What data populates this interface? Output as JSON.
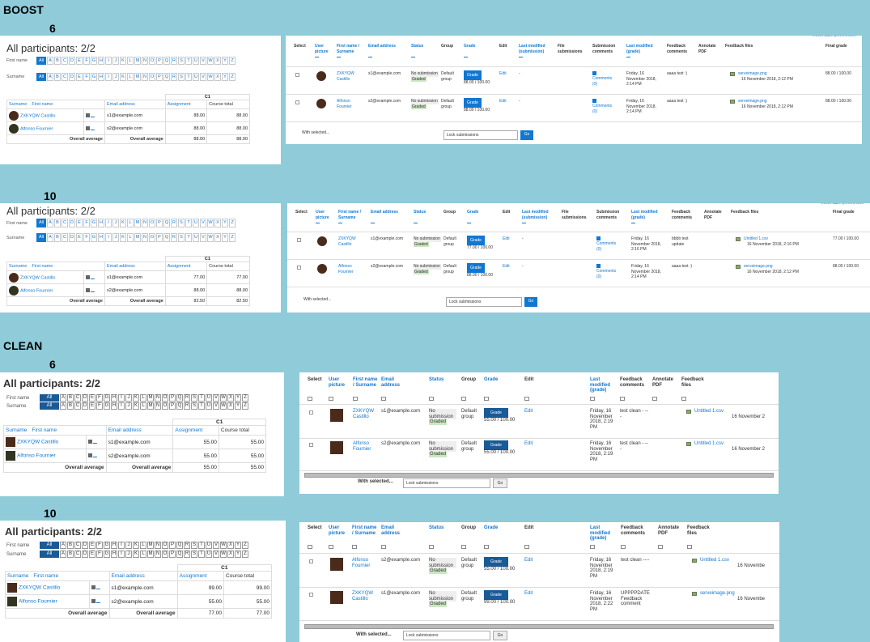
{
  "sections": {
    "boost": "BOOST",
    "clean": "CLEAN"
  },
  "versions": {
    "v6": "6",
    "v10": "10"
  },
  "gradebook": {
    "title": "All participants: 2/2",
    "firstname_label": "First name",
    "surname_label": "Surname",
    "all": "All",
    "letters": [
      "A",
      "B",
      "C",
      "D",
      "E",
      "F",
      "G",
      "H",
      "I",
      "J",
      "K",
      "L",
      "M",
      "N",
      "O",
      "P",
      "Q",
      "R",
      "S",
      "T",
      "U",
      "V",
      "W",
      "X",
      "Y",
      "Z"
    ],
    "c1": "C1",
    "col_surname": "Surname",
    "col_firstname": "First name",
    "col_email": "Email address",
    "col_assignment": "Assignment",
    "col_total": "Course total",
    "overall": "Overall average",
    "b6": {
      "rows": [
        {
          "name": "ZXKYQW Castillo",
          "email": "s1@example.com",
          "a": "88.00",
          "t": "88.00"
        },
        {
          "name": "Alfonso Fournier",
          "email": "s2@example.com",
          "a": "88.00",
          "t": "88.00"
        }
      ],
      "avg_a": "88.00",
      "avg_t": "88.00"
    },
    "b10": {
      "rows": [
        {
          "name": "ZXKYQW Castillo",
          "email": "s1@example.com",
          "a": "77.00",
          "t": "77.00"
        },
        {
          "name": "Alfonso Fournier",
          "email": "s2@example.com",
          "a": "88.00",
          "t": "88.00"
        }
      ],
      "avg_a": "82.50",
      "avg_t": "82.50"
    },
    "c6": {
      "rows": [
        {
          "name": "ZXKYQW Castillo",
          "email": "s1@example.com",
          "a": "55.00",
          "t": "55.00"
        },
        {
          "name": "Alfonso Fournier",
          "email": "s2@example.com",
          "a": "55.00",
          "t": "55.00"
        }
      ],
      "avg_a": "55.00",
      "avg_t": "55.00"
    },
    "c10": {
      "rows": [
        {
          "name": "ZXKYQW Castillo",
          "email": "s1@example.com",
          "a": "99.00",
          "t": "99.00"
        },
        {
          "name": "Alfonso Fournier",
          "email": "s2@example.com",
          "a": "55.00",
          "t": "55.00"
        }
      ],
      "avg_a": "77.00",
      "avg_t": "77.00"
    }
  },
  "assign": {
    "headers": {
      "select": "Select",
      "picture": "User picture",
      "name": "First name / Surname",
      "email": "Email address",
      "status": "Status",
      "group": "Group",
      "grade": "Grade",
      "edit": "Edit",
      "lastmod": "Last modified (submission)",
      "files": "File submissions",
      "subcomments": "Submission comments",
      "lastmodgrade": "Last modified (grade)",
      "fbcomments": "Feedback comments",
      "annotate": "Annotate PDF",
      "fbfiles": "Feedback files",
      "final": "Final grade"
    },
    "clean_headers": {
      "name": "First name / Surname",
      "lastmodgrade": "Last modified (grade)"
    },
    "reset": "Reset table preferences",
    "status_nosub": "No submission",
    "status_graded": "Graded",
    "group_default": "Default group",
    "grade_btn": "Grade",
    "edit": "Edit",
    "dash": "-",
    "comments": "Comments (0)",
    "with_selected": "With selected...",
    "lock": "Lock submissions",
    "go": "Go",
    "b6": [
      {
        "name": "ZXKYQW Castillo",
        "email": "s1@example.com",
        "grade": "88.00 / 100.00",
        "date": "Friday, 16 November 2018, 2:14 PM",
        "fb": "aaaa test :)",
        "file": "serveimage.png",
        "filedate": "16 November 2018, 2:12 PM",
        "final": "88.00 / 100.00"
      },
      {
        "name": "Alfonso Fournier",
        "email": "s2@example.com",
        "grade": "88.00 / 100.00",
        "date": "Friday, 16 November 2018, 2:14 PM",
        "fb": "aaaa test :)",
        "file": "serveimage.png",
        "filedate": "16 November 2018, 2:12 PM",
        "final": "88.00 / 100.00"
      }
    ],
    "b10": [
      {
        "name": "ZXKYQW Castillo",
        "email": "s1@example.com",
        "grade": "77.00 / 100.00",
        "date": "Friday, 16 November 2018, 2:16 PM",
        "fb": "bbbb test update",
        "file": "Untitled 1.csv",
        "filedate": "16 November 2018, 2:16 PM",
        "final": "77.00 / 100.00"
      },
      {
        "name": "Alfonso Fournier",
        "email": "s2@example.com",
        "grade": "88.00 / 100.00",
        "date": "Friday, 16 November 2018, 2:14 PM",
        "fb": "aaaa test :)",
        "file": "serveimage.png",
        "filedate": "16 November 2018, 2:12 PM",
        "final": "88.00 / 100.00"
      }
    ],
    "c6": [
      {
        "name": "ZXKYQW Castillo",
        "email": "s1@example.com",
        "grade": "55.00 / 100.00",
        "date": "Friday, 16 November 2018, 2:19 PM",
        "fb": "test clean - ---",
        "file": "Untitled 1.csv",
        "filedate": "16 November 2"
      },
      {
        "name": "Alfonso Fournier",
        "email": "s2@example.com",
        "grade": "55.00 / 100.00",
        "date": "Friday, 16 November 2018, 2:19 PM",
        "fb": "test clean - ---",
        "file": "Untitled 1.csv",
        "filedate": "16 November 2"
      }
    ],
    "c10": [
      {
        "name": "Alfonso Fournier",
        "email": "s2@example.com",
        "grade": "55.00 / 100.00",
        "date": "Friday, 16 November 2018, 2:19 PM",
        "fb": "test clean ----",
        "file": "Untitled 1.csv",
        "filedate": "16 Novembe"
      },
      {
        "name": "ZXKYQW Castillo",
        "email": "s1@example.com",
        "grade": "99.00 / 100.00",
        "date": "Friday, 16 November 2018, 2:22 PM",
        "fb": "UPPPPDATE Feedback comment",
        "file": "serveimage.png",
        "filedate": "16 Novembe"
      }
    ]
  }
}
